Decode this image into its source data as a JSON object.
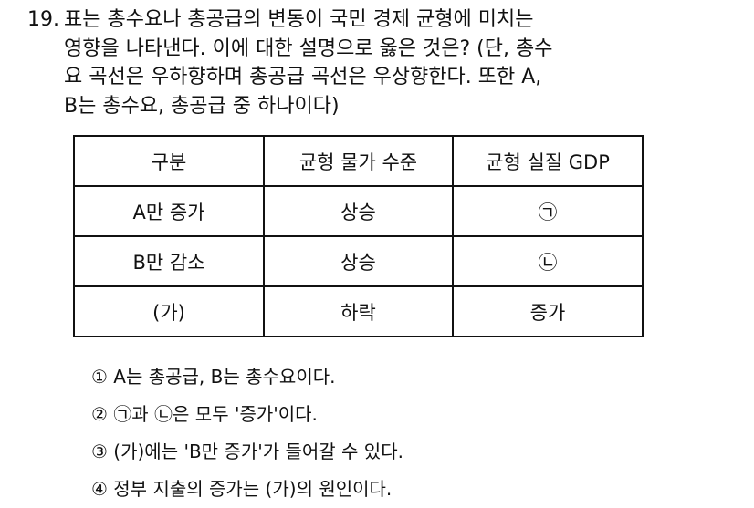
{
  "question": {
    "number": "19.",
    "lines": [
      "표는 총수요나 총공급의 변동이 국민 경제 균형에 미치는",
      "영향을 나타낸다. 이에 대한 설명으로 옳은 것은? (단, 총수",
      "요 곡선은 우하향하며 총공급 곡선은 우상향한다. 또한 A,",
      "B는 총수요, 총공급 중 하나이다)"
    ]
  },
  "table": {
    "headers": [
      "구분",
      "균형 물가 수준",
      "균형 실질 GDP"
    ],
    "rows": [
      [
        "A만 증가",
        "상승",
        "㉠"
      ],
      [
        "B만 감소",
        "상승",
        "㉡"
      ],
      [
        "(가)",
        "하락",
        "증가"
      ]
    ]
  },
  "options": [
    "① A는 총공급, B는 총수요이다.",
    "② ㉠과 ㉡은 모두 '증가'이다.",
    "③ (가)에는 'B만 증가'가 들어갈 수 있다.",
    "④ 정부 지출의 증가는 (가)의 원인이다."
  ]
}
